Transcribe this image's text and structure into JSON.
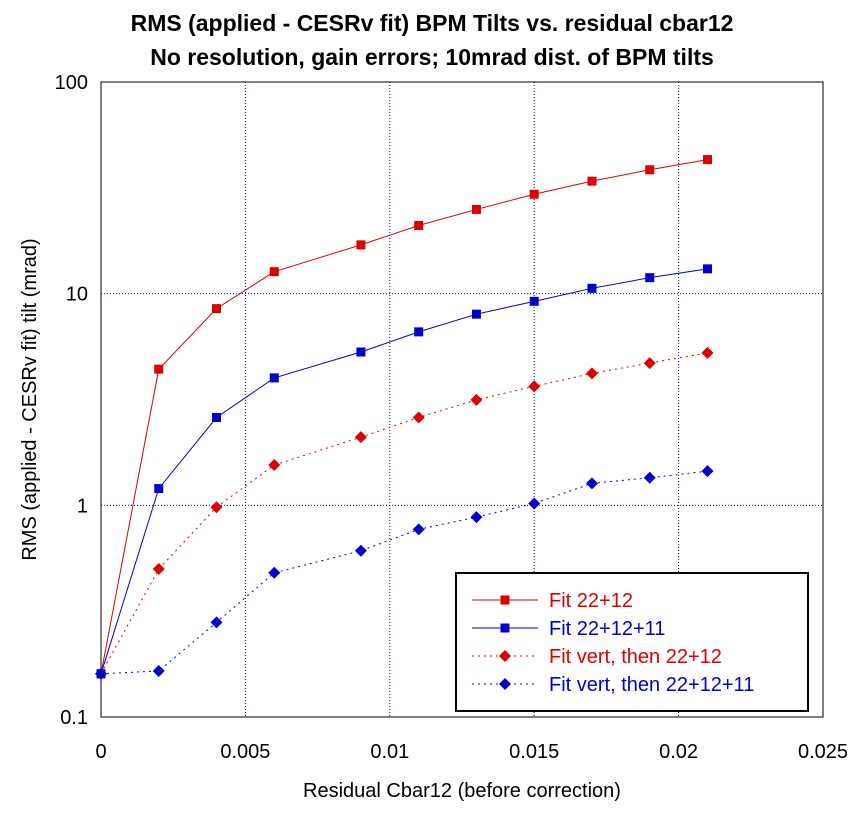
{
  "chart_data": {
    "type": "line",
    "title": "RMS (applied - CESRv fit) BPM Tilts vs. residual cbar12",
    "subtitle": "No resolution, gain errors; 10mrad dist. of BPM tilts",
    "xlabel": "Residual Cbar12 (before correction)",
    "ylabel": "RMS (applied - CESRv fit) tilt (mrad)",
    "xlim": [
      0,
      0.025
    ],
    "ylim": [
      0.1,
      100
    ],
    "yscale": "log",
    "grid": true,
    "legend_position": "bottom-right",
    "x_ticks": [
      "0",
      "0.005",
      "0.01",
      "0.015",
      "0.02",
      "0.025"
    ],
    "y_ticks": [
      "0.1",
      "1",
      "10",
      "100"
    ],
    "series": [
      {
        "name": "Fit 22+12",
        "color": "#dd0000",
        "marker": "square",
        "line": "solid",
        "x": [
          0,
          0.002,
          0.004,
          0.006,
          0.009,
          0.011,
          0.013,
          0.015,
          0.017,
          0.019,
          0.021
        ],
        "y": [
          0.16,
          4.4,
          8.5,
          12.7,
          17,
          21,
          25,
          29.5,
          34,
          38.5,
          43
        ]
      },
      {
        "name": "Fit 22+12+11",
        "color": "#0000cc",
        "marker": "square",
        "line": "solid",
        "x": [
          0,
          0.002,
          0.004,
          0.006,
          0.009,
          0.011,
          0.013,
          0.015,
          0.017,
          0.019,
          0.021
        ],
        "y": [
          0.16,
          1.2,
          2.6,
          4.0,
          5.3,
          6.6,
          8.0,
          9.2,
          10.6,
          11.9,
          13.1
        ]
      },
      {
        "name": "Fit vert, then 22+12",
        "color": "#dd0000",
        "marker": "diamond",
        "line": "dotted",
        "x": [
          0,
          0.002,
          0.004,
          0.006,
          0.009,
          0.011,
          0.013,
          0.015,
          0.017,
          0.019,
          0.021
        ],
        "y": [
          0.16,
          0.5,
          0.98,
          1.55,
          2.1,
          2.6,
          3.15,
          3.65,
          4.2,
          4.7,
          5.25
        ]
      },
      {
        "name": "Fit vert, then 22+12+11",
        "color": "#0000cc",
        "marker": "diamond",
        "line": "dotted",
        "x": [
          0,
          0.002,
          0.004,
          0.006,
          0.009,
          0.011,
          0.013,
          0.015,
          0.017,
          0.019,
          0.021
        ],
        "y": [
          0.16,
          0.165,
          0.28,
          0.48,
          0.61,
          0.77,
          0.88,
          1.02,
          1.27,
          1.35,
          1.45
        ]
      }
    ]
  }
}
